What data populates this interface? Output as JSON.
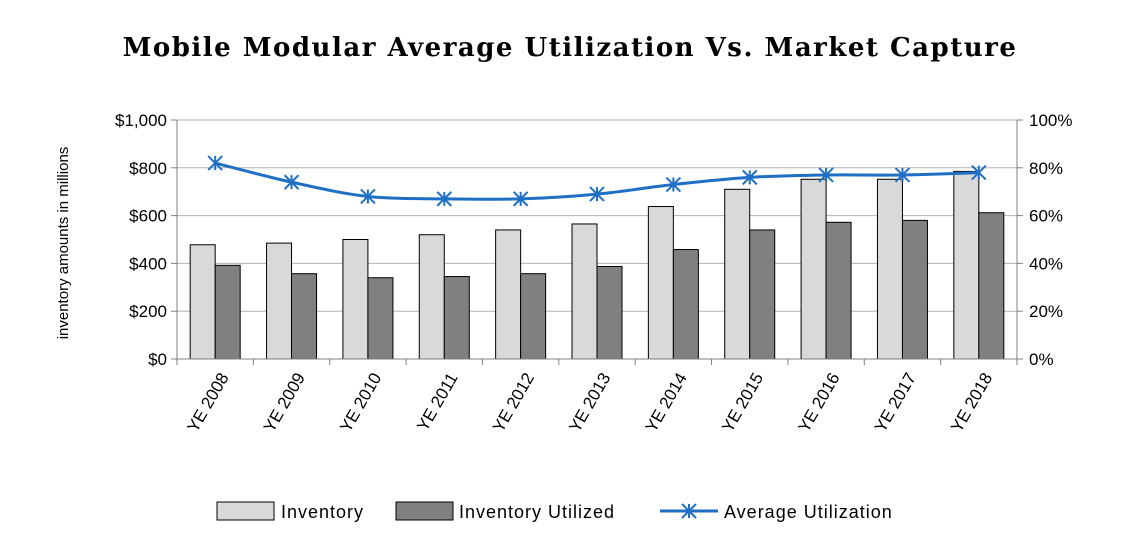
{
  "chart_data": {
    "type": "bar",
    "title": "Mobile Modular Average Utilization Vs. Market Capture",
    "ylabel": "inventory amounts in millions",
    "categories": [
      "YE 2008",
      "YE 2009",
      "YE 2010",
      "YE 2011",
      "YE 2012",
      "YE 2013",
      "YE 2014",
      "YE 2015",
      "YE 2016",
      "YE 2017",
      "YE 2018"
    ],
    "series": [
      {
        "name": "Inventory",
        "type": "bar",
        "axis": "left",
        "color": "#d9d9d9",
        "values": [
          478,
          485,
          500,
          520,
          540,
          565,
          638,
          710,
          752,
          752,
          785
        ]
      },
      {
        "name": "Inventory Utilized",
        "type": "bar",
        "axis": "left",
        "color": "#808080",
        "values": [
          392,
          357,
          340,
          345,
          357,
          387,
          458,
          540,
          572,
          580,
          612
        ]
      },
      {
        "name": "Average Utilization",
        "type": "line",
        "axis": "right",
        "color": "#1f6fc5",
        "values": [
          82,
          74,
          68,
          67,
          67,
          69,
          73,
          76,
          77,
          77,
          78
        ]
      }
    ],
    "ylim": [
      0,
      1000
    ],
    "y_ticks": [
      "$0",
      "$200",
      "$400",
      "$600",
      "$800",
      "$1,000"
    ],
    "y2lim": [
      0,
      100
    ],
    "y2_ticks": [
      "0%",
      "20%",
      "40%",
      "60%",
      "80%",
      "100%"
    ],
    "grid": true,
    "legend_position": "bottom"
  }
}
